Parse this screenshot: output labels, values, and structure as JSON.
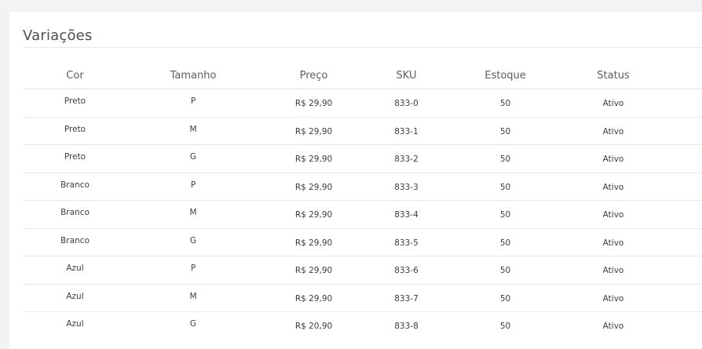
{
  "section": {
    "title": "Variações"
  },
  "table": {
    "headers": {
      "cor": "Cor",
      "tamanho": "Tamanho",
      "preco": "Preço",
      "sku": "SKU",
      "estoque": "Estoque",
      "status": "Status"
    },
    "rows": [
      {
        "cor": "Preto",
        "tamanho": "P",
        "preco": "R$ 29,90",
        "sku": "833-0",
        "estoque": "50",
        "status": "Ativo"
      },
      {
        "cor": "Preto",
        "tamanho": "M",
        "preco": "R$ 29,90",
        "sku": "833-1",
        "estoque": "50",
        "status": "Ativo"
      },
      {
        "cor": "Preto",
        "tamanho": "G",
        "preco": "R$ 29,90",
        "sku": "833-2",
        "estoque": "50",
        "status": "Ativo"
      },
      {
        "cor": "Branco",
        "tamanho": "P",
        "preco": "R$ 29,90",
        "sku": "833-3",
        "estoque": "50",
        "status": "Ativo"
      },
      {
        "cor": "Branco",
        "tamanho": "M",
        "preco": "R$ 29,90",
        "sku": "833-4",
        "estoque": "50",
        "status": "Ativo"
      },
      {
        "cor": "Branco",
        "tamanho": "G",
        "preco": "R$ 29,90",
        "sku": "833-5",
        "estoque": "50",
        "status": "Ativo"
      },
      {
        "cor": "Azul",
        "tamanho": "P",
        "preco": "R$ 29,90",
        "sku": "833-6",
        "estoque": "50",
        "status": "Ativo"
      },
      {
        "cor": "Azul",
        "tamanho": "M",
        "preco": "R$ 29,90",
        "sku": "833-7",
        "estoque": "50",
        "status": "Ativo"
      },
      {
        "cor": "Azul",
        "tamanho": "G",
        "preco": "R$ 20,90",
        "sku": "833-8",
        "estoque": "50",
        "status": "Ativo"
      }
    ]
  },
  "colors": {
    "link": "#2a8fb6",
    "text": "#3a3d42",
    "header_text": "#5a5f66",
    "page_background": "#f2f3f5",
    "panel_background": "#ffffff"
  }
}
